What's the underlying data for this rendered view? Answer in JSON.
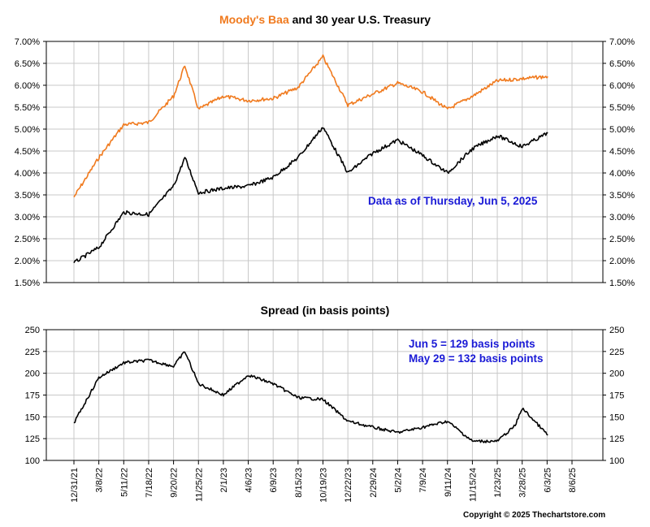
{
  "colors": {
    "baa": "#f07a1e",
    "treasury": "#000000",
    "spread": "#000000",
    "note": "#1a1ad6",
    "grid": "#c8c8c8"
  },
  "chart_data": [
    {
      "type": "line",
      "title_parts": [
        "Moody's Baa",
        " and 30 year U.S. Treasury"
      ],
      "y_ticks": [
        "1.50%",
        "2.00%",
        "2.50%",
        "3.00%",
        "3.50%",
        "4.00%",
        "4.50%",
        "5.00%",
        "5.50%",
        "6.00%",
        "6.50%",
        "7.00%"
      ],
      "ylim": [
        1.5,
        7.0
      ],
      "annotation": "Data as of Thursday, Jun 5, 2025",
      "legend": "none",
      "grid": true,
      "series": [
        {
          "name": "Moody's Baa",
          "x": [
            "12/31/21",
            "3/8/22",
            "5/11/22",
            "7/18/22",
            "9/20/22",
            "10/20/22",
            "11/25/22",
            "2/1/23",
            "4/6/23",
            "6/9/23",
            "8/15/23",
            "10/19/23",
            "12/22/23",
            "2/29/24",
            "5/2/24",
            "7/9/24",
            "9/11/24",
            "11/15/24",
            "1/23/25",
            "3/28/25",
            "6/5/25"
          ],
          "values": [
            3.45,
            4.35,
            5.1,
            5.15,
            5.75,
            6.45,
            5.45,
            5.75,
            5.65,
            5.7,
            5.95,
            6.65,
            5.55,
            5.8,
            6.05,
            5.85,
            5.45,
            5.75,
            6.1,
            6.15,
            6.2
          ]
        },
        {
          "name": "30 year U.S. Treasury",
          "x": [
            "12/31/21",
            "3/8/22",
            "5/11/22",
            "7/18/22",
            "9/20/22",
            "10/20/22",
            "11/25/22",
            "2/1/23",
            "4/6/23",
            "6/9/23",
            "8/15/23",
            "10/19/23",
            "12/22/23",
            "2/29/24",
            "5/2/24",
            "7/9/24",
            "9/11/24",
            "11/15/24",
            "1/23/25",
            "3/28/25",
            "6/5/25"
          ],
          "values": [
            1.95,
            2.3,
            3.1,
            3.05,
            3.7,
            4.35,
            3.55,
            3.65,
            3.7,
            3.9,
            4.35,
            5.05,
            4.0,
            4.45,
            4.75,
            4.4,
            4.0,
            4.55,
            4.85,
            4.6,
            4.91
          ]
        }
      ]
    },
    {
      "type": "line",
      "title": "Spread (in basis points)",
      "y_ticks": [
        "100",
        "125",
        "150",
        "175",
        "200",
        "225",
        "250"
      ],
      "ylim": [
        100,
        250
      ],
      "annotations": [
        "Jun 5 = 129 basis points",
        "May 29 = 132 basis points"
      ],
      "legend": "none",
      "grid": true,
      "series": [
        {
          "x": [
            "12/31/21",
            "3/8/22",
            "5/11/22",
            "7/18/22",
            "9/20/22",
            "10/20/22",
            "11/25/22",
            "2/1/23",
            "4/6/23",
            "6/9/23",
            "8/15/23",
            "10/19/23",
            "12/22/23",
            "2/29/24",
            "5/2/24",
            "7/9/24",
            "9/11/24",
            "11/15/24",
            "1/23/25",
            "3/10/25",
            "3/28/25",
            "6/5/25"
          ],
          "values": [
            143,
            195,
            212,
            215,
            208,
            225,
            188,
            175,
            198,
            188,
            172,
            170,
            145,
            138,
            132,
            138,
            145,
            122,
            122,
            140,
            160,
            129
          ]
        }
      ]
    }
  ],
  "x_ticks": [
    "12/31/21",
    "3/8/22",
    "5/11/22",
    "7/18/22",
    "9/20/22",
    "11/25/22",
    "2/1/23",
    "4/6/23",
    "6/9/23",
    "8/15/23",
    "10/19/23",
    "12/22/23",
    "2/29/24",
    "5/2/24",
    "7/9/24",
    "9/11/24",
    "11/15/24",
    "1/23/25",
    "3/28/25",
    "6/3/25",
    "8/6/25"
  ],
  "copyright": "Copyright © 2025 Thechartstore.com"
}
